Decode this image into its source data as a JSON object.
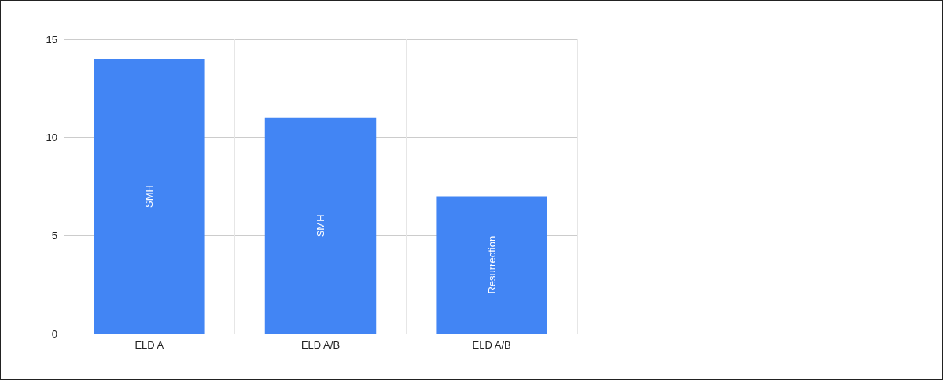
{
  "chart_data": {
    "type": "bar",
    "categories": [
      "ELD A",
      "ELD A/B",
      "ELD A/B"
    ],
    "values": [
      14,
      11,
      7
    ],
    "color": "#4285f4",
    "value_labels": [
      "SMH",
      "SMH",
      "Resurrection"
    ],
    "ylim": [
      0,
      15
    ],
    "yticks": [
      0,
      5,
      10,
      15
    ],
    "grid": true
  }
}
